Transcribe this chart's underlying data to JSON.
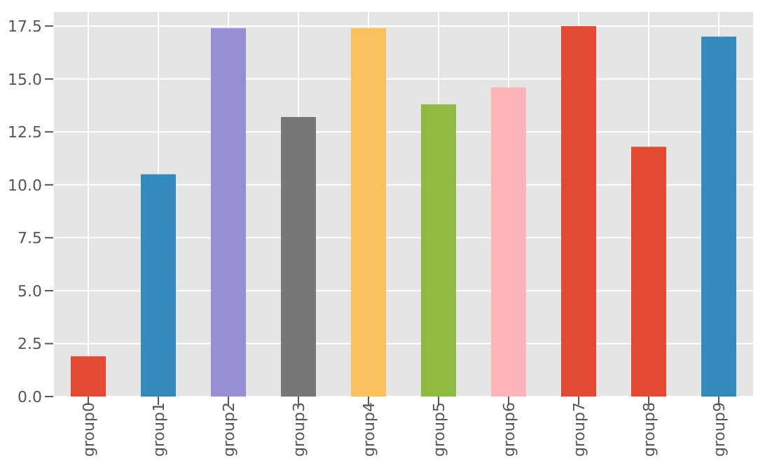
{
  "chart_data": {
    "type": "bar",
    "categories": [
      "group0",
      "group1",
      "group2",
      "group3",
      "group4",
      "group5",
      "group6",
      "group7",
      "group8",
      "group9"
    ],
    "values": [
      1.9,
      10.5,
      17.4,
      13.2,
      17.4,
      13.8,
      14.6,
      17.5,
      11.8,
      17.0
    ],
    "colors": [
      "#e24a33",
      "#348abd",
      "#988ed5",
      "#777777",
      "#fbc15e",
      "#8eba42",
      "#ffb5b8",
      "#e24a33",
      "#e24a33",
      "#348abd"
    ],
    "ylim": [
      0,
      18.2
    ],
    "yticks": [
      {
        "value": 0,
        "label": "0.0"
      },
      {
        "value": 2.5,
        "label": "2.5"
      },
      {
        "value": 5,
        "label": "5.0"
      },
      {
        "value": 7.5,
        "label": "7.5"
      },
      {
        "value": 10,
        "label": "10.0"
      },
      {
        "value": 12.5,
        "label": "12.5"
      },
      {
        "value": 15,
        "label": "15.0"
      },
      {
        "value": 17.5,
        "label": "17.5"
      }
    ],
    "grid": true
  }
}
